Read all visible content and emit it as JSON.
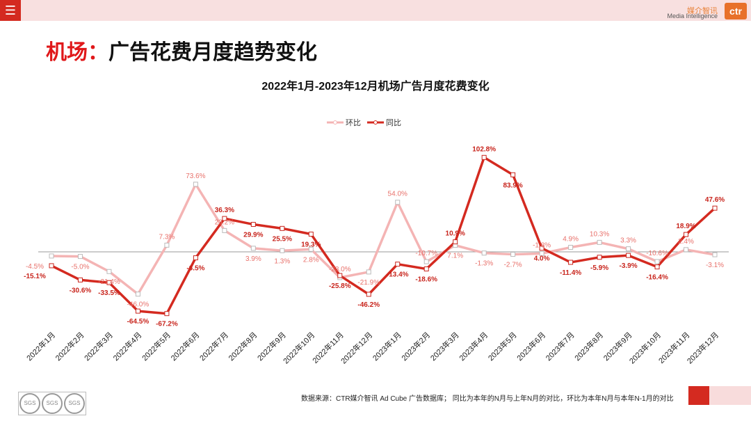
{
  "header": {
    "menu_icon": "hamburger-icon",
    "brand_cn": "媒介智讯",
    "brand_en": "Media Intelligence",
    "logo_text": "ctr"
  },
  "page_title_prefix": "机场：",
  "page_title_rest": "广告花费月度趋势变化",
  "footer": "数据来源：CTR媒介智讯 Ad Cube 广告数据库； 同比为本年的N月与上年N月的对比，环比为本年N月与本年N-1月的对比",
  "sgs_label": "SGS",
  "chart_data": {
    "type": "line",
    "title": "2022年1月-2023年12月机场广告月度花费变化",
    "legend_position": "top",
    "grid": false,
    "categories": [
      "2022年1月",
      "2022年2月",
      "2022年3月",
      "2022年4月",
      "2022年5月",
      "2022年6月",
      "2022年7月",
      "2022年8月",
      "2022年9月",
      "2022年10月",
      "2022年11月",
      "2022年12月",
      "2023年1月",
      "2023年2月",
      "2023年3月",
      "2023年4月",
      "2023年5月",
      "2023年6月",
      "2023年7月",
      "2023年8月",
      "2023年9月",
      "2023年10月",
      "2023年11月",
      "2023年12月"
    ],
    "series": [
      {
        "name": "环比",
        "color": "#f4b4b4",
        "label_color": "#e8706a",
        "values": [
          -4.5,
          -5.0,
          -21.4,
          -46.0,
          7.3,
          73.6,
          23.2,
          3.9,
          1.3,
          2.8,
          -28.0,
          -21.9,
          54.0,
          -10.7,
          7.1,
          -1.3,
          -2.7,
          -1.8,
          4.9,
          10.3,
          3.3,
          -10.6,
          2.4,
          -3.1
        ]
      },
      {
        "name": "同比",
        "color": "#d42a20",
        "label_color": "#c8241c",
        "values": [
          -15.1,
          -30.6,
          -33.5,
          -64.5,
          -67.2,
          -6.5,
          36.3,
          29.9,
          25.5,
          19.3,
          -25.8,
          -46.2,
          -13.4,
          -18.6,
          10.9,
          102.8,
          83.9,
          4.0,
          -11.4,
          -5.9,
          -3.9,
          -16.4,
          18.9,
          47.6
        ]
      }
    ]
  }
}
